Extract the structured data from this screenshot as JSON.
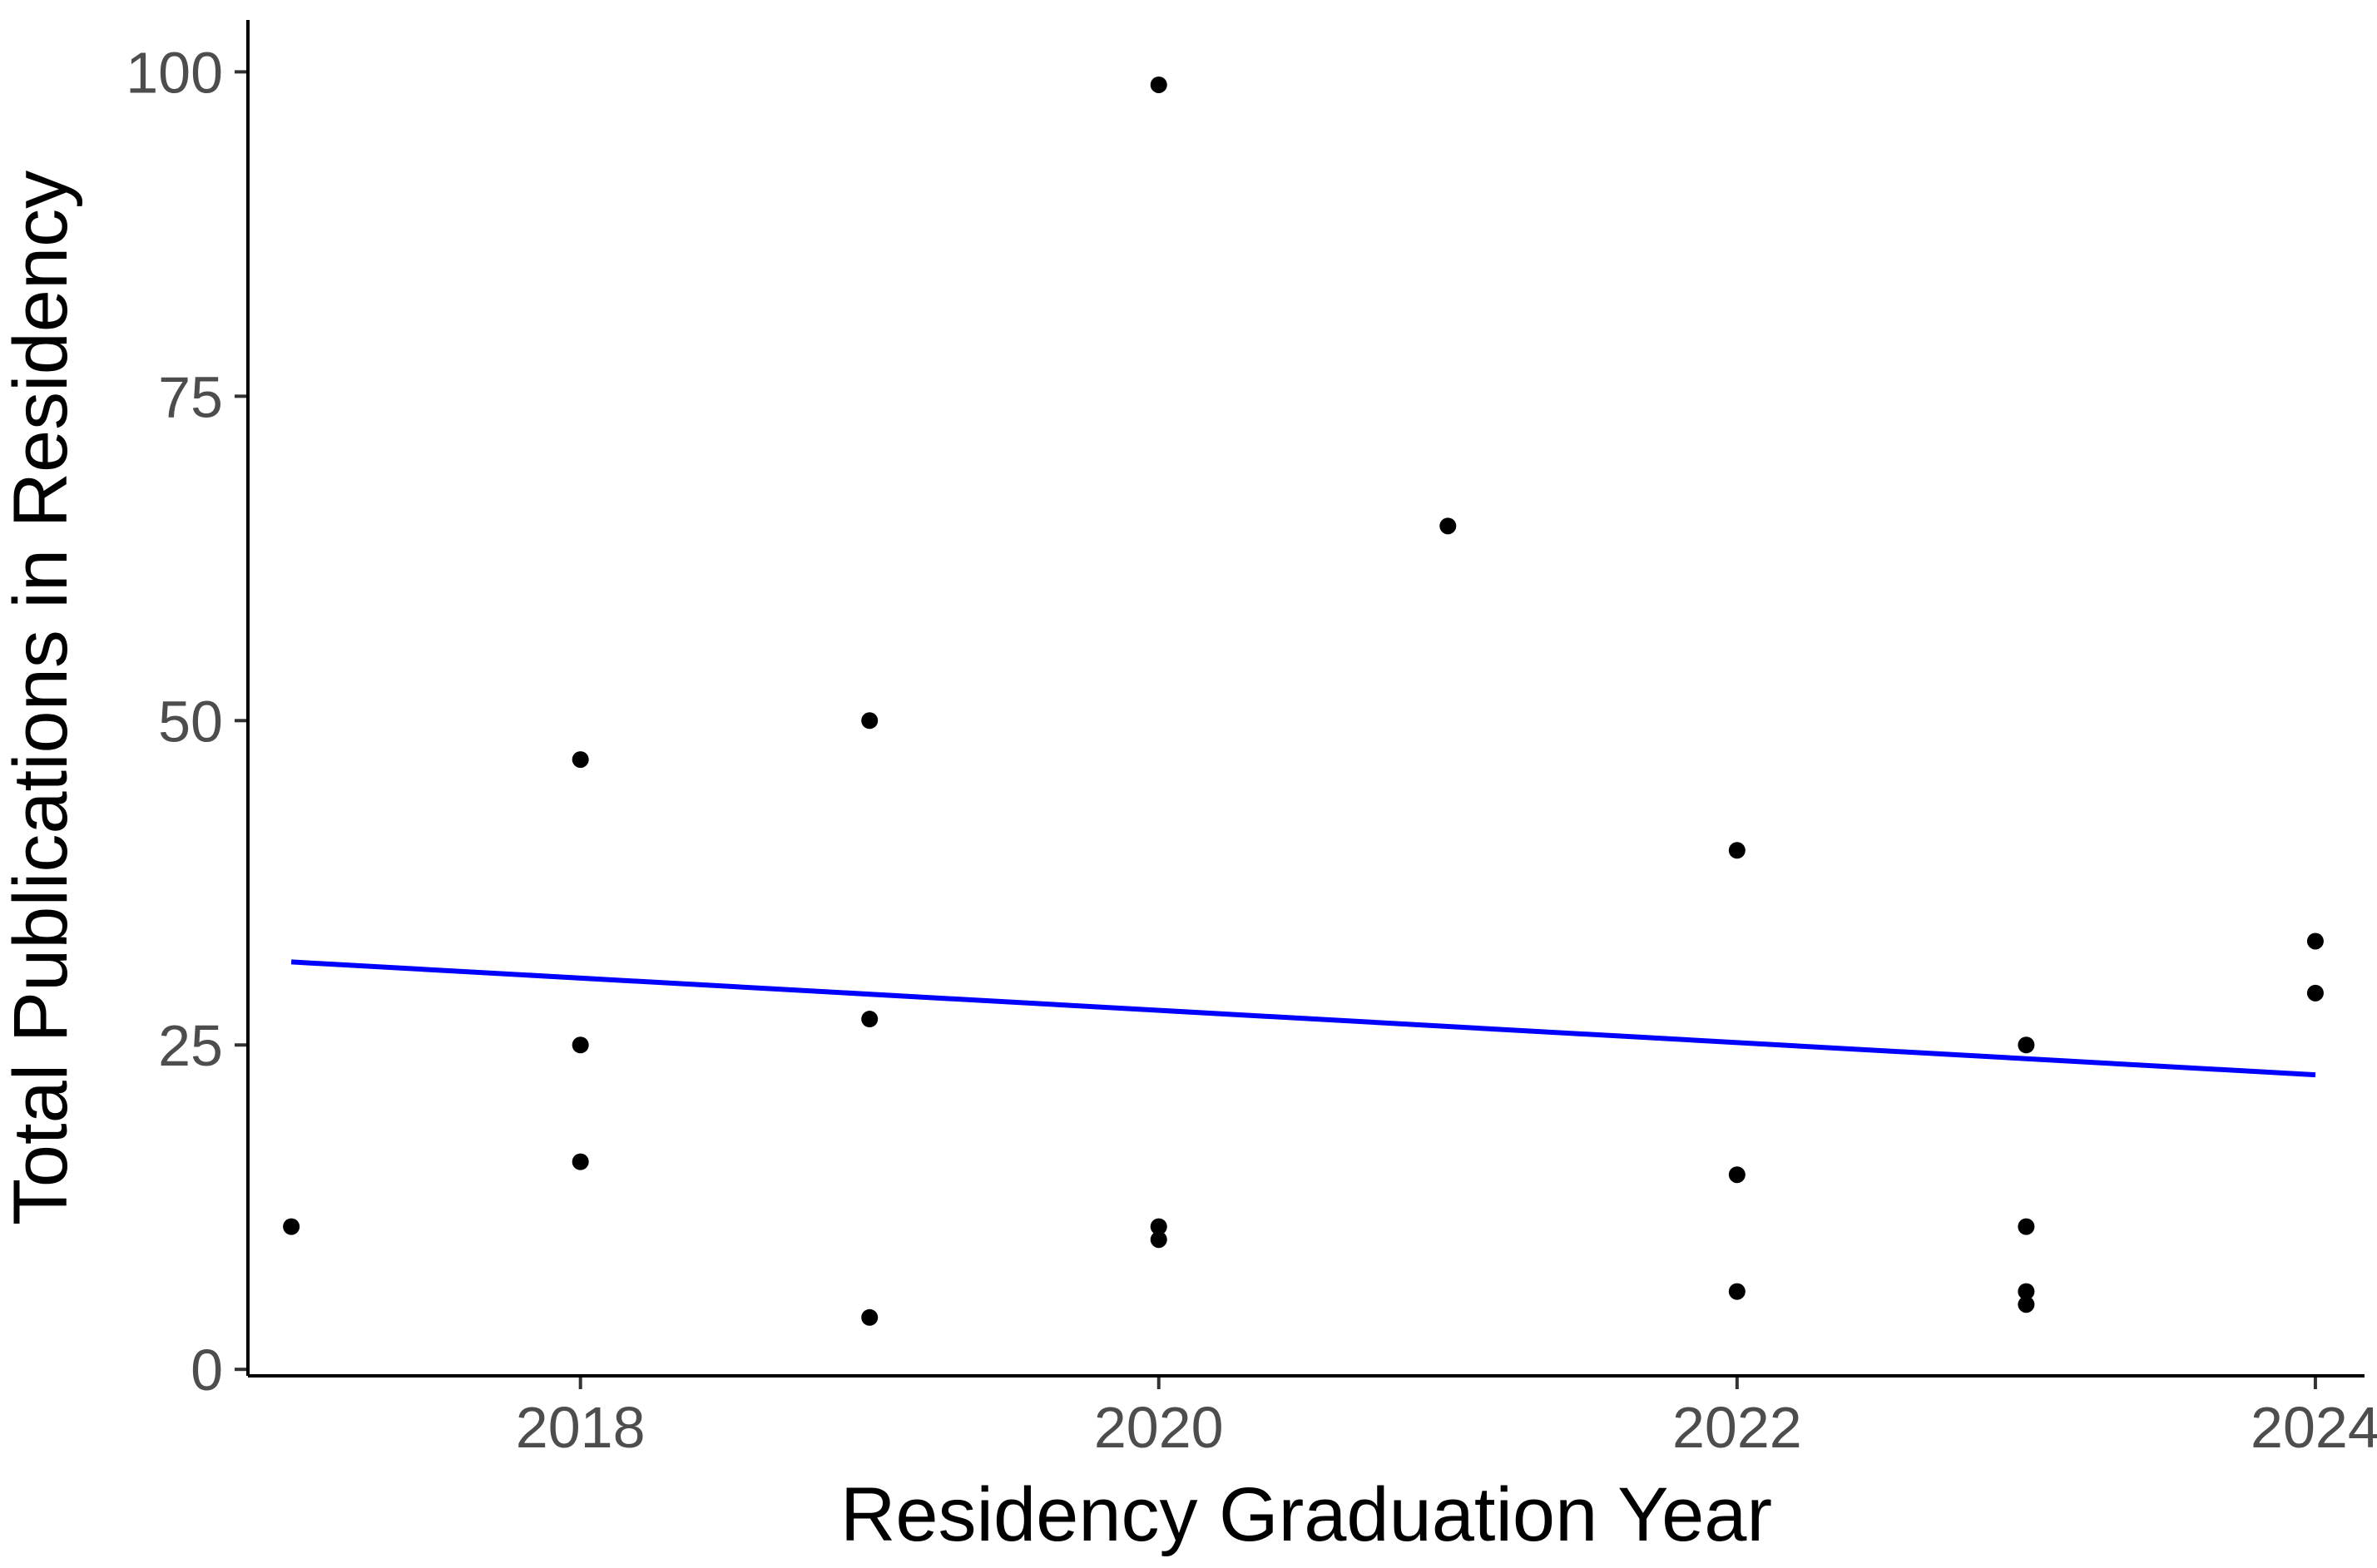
{
  "chart_data": {
    "type": "scatter",
    "xlabel": "Residency Graduation Year",
    "ylabel": "Total Publications in Residency",
    "xlim": [
      2016.85,
      2024.17
    ],
    "ylim": [
      -0.5,
      104
    ],
    "x_ticks": [
      2018,
      2020,
      2022,
      2024
    ],
    "x_tick_labels": [
      "2018",
      "2020",
      "2022",
      "2024"
    ],
    "y_ticks": [
      0,
      25,
      50,
      75,
      100
    ],
    "y_tick_labels": [
      "0",
      "25",
      "50",
      "75",
      "100"
    ],
    "grid": false,
    "legend": "none",
    "point_color": "#000000",
    "trend_color": "#0000ff",
    "points": [
      {
        "x": 2017,
        "y": 11
      },
      {
        "x": 2018,
        "y": 47
      },
      {
        "x": 2018,
        "y": 25
      },
      {
        "x": 2018,
        "y": 16
      },
      {
        "x": 2019,
        "y": 50
      },
      {
        "x": 2019,
        "y": 27
      },
      {
        "x": 2019,
        "y": 4
      },
      {
        "x": 2020,
        "y": 99
      },
      {
        "x": 2020,
        "y": 11
      },
      {
        "x": 2020,
        "y": 10
      },
      {
        "x": 2021,
        "y": 65
      },
      {
        "x": 2022,
        "y": 40
      },
      {
        "x": 2022,
        "y": 15
      },
      {
        "x": 2022,
        "y": 6
      },
      {
        "x": 2023,
        "y": 25
      },
      {
        "x": 2023,
        "y": 11
      },
      {
        "x": 2023,
        "y": 6
      },
      {
        "x": 2023,
        "y": 5
      },
      {
        "x": 2024,
        "y": 33
      },
      {
        "x": 2024,
        "y": 29
      }
    ],
    "trend_line": {
      "x": [
        2017,
        2024
      ],
      "y": [
        31.4,
        22.7
      ]
    }
  }
}
